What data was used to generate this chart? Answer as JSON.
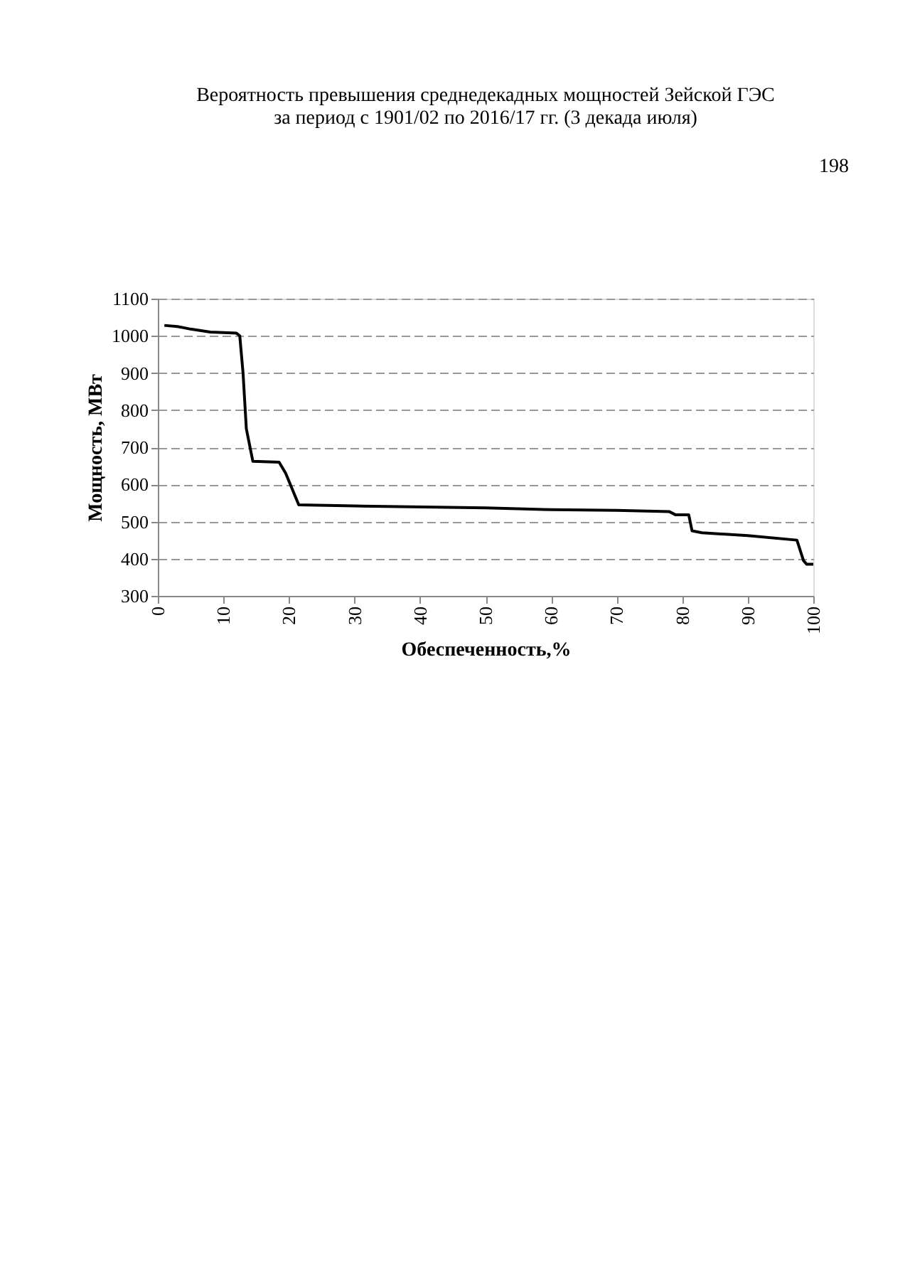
{
  "chart_data": {
    "type": "line",
    "title": [
      "Вероятность превышения среднедекадных мощностей Зейской ГЭС",
      "за период с 1901/02 по 2016/17 гг. (3 декада июля)"
    ],
    "xlabel": "Обеспеченность,%",
    "ylabel": "Мощность, МВт",
    "x": [
      1,
      3,
      5,
      8,
      12,
      12.5,
      13,
      13.5,
      14.5,
      18.5,
      19.5,
      21.5,
      30,
      50,
      60,
      70,
      78,
      79,
      81,
      81.5,
      83,
      90,
      97.5,
      98.5,
      99,
      100
    ],
    "series": [
      {
        "color": "#000000",
        "values": [
          1028,
          1025,
          1018,
          1010,
          1007,
          1000,
          900,
          750,
          662,
          660,
          630,
          545,
          542,
          537,
          532,
          530,
          527,
          518,
          518,
          475,
          470,
          462,
          450,
          395,
          385,
          385
        ]
      }
    ],
    "xlim": [
      0,
      100
    ],
    "xticks": [
      0,
      10,
      20,
      30,
      40,
      50,
      60,
      70,
      80,
      90,
      100
    ],
    "ylim": [
      300,
      1100
    ],
    "yticks": [
      300,
      400,
      500,
      600,
      700,
      800,
      900,
      1000,
      1100
    ],
    "grid": "y",
    "marker": "none",
    "line_style": "solid",
    "annotations": [
      "198"
    ]
  }
}
